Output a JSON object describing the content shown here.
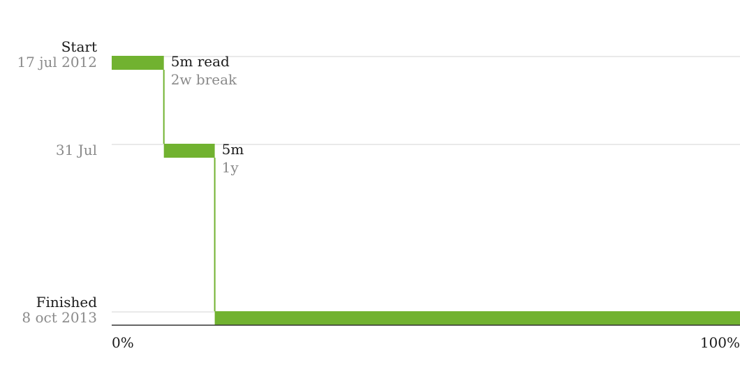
{
  "chart_data": {
    "type": "step-progress",
    "x_axis": {
      "min_label": "0%",
      "max_label": "100%",
      "range": [
        0,
        100
      ]
    },
    "y_rows": [
      {
        "id": "start",
        "title": "Start",
        "date": "17 jul 2012"
      },
      {
        "id": "mid",
        "title": "",
        "date": "31 Jul"
      },
      {
        "id": "end",
        "title": "Finished",
        "date": "8 oct 2013"
      }
    ],
    "segments": [
      {
        "row": "start",
        "from_pct": 0,
        "to_pct": 8.3,
        "read_label": "5m read",
        "break_label": "2w break"
      },
      {
        "row": "mid",
        "from_pct": 8.3,
        "to_pct": 16.4,
        "read_label": "5m",
        "break_label": "1y"
      },
      {
        "row": "end",
        "from_pct": 16.4,
        "to_pct": 100,
        "read_label": "",
        "break_label": ""
      }
    ],
    "colors": {
      "bar": "#71b230",
      "grid": "#e2e2e2",
      "axis": "#333333",
      "label": "#1a1a1a",
      "muted": "#8a8a8a"
    }
  }
}
